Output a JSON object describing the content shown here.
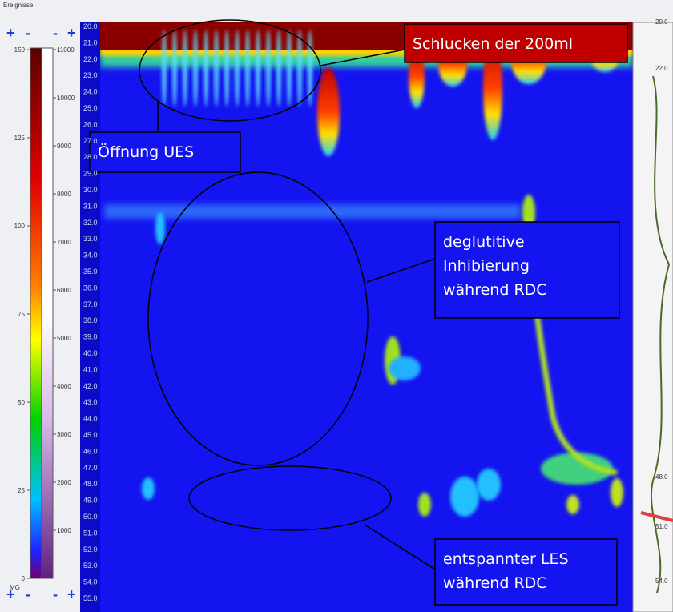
{
  "window": {
    "title": "Ereignisse",
    "buttons": [
      "+",
      "-"
    ],
    "unit": "MG"
  },
  "colorbar": {
    "pressure_ticks": [
      150,
      125,
      100,
      75,
      50,
      25,
      0
    ],
    "other_ticks": [
      11000,
      10000,
      9000,
      8000,
      7000,
      6000,
      5000,
      4000,
      3000,
      2000,
      1000
    ]
  },
  "depth_labels": [
    "20.0",
    "21.0",
    "22.0",
    "23.0",
    "24.0",
    "25.0",
    "26.0",
    "27.0",
    "28.0",
    "29.0",
    "30.0",
    "31.0",
    "32.0",
    "33.0",
    "34.0",
    "35.0",
    "36.0",
    "37.0",
    "38.0",
    "39.0",
    "40.0",
    "41.0",
    "42.0",
    "43.0",
    "44.0",
    "45.0",
    "46.0",
    "47.0",
    "48.0",
    "49.0",
    "50.0",
    "51.0",
    "52.0",
    "53.0",
    "54.0",
    "55.0"
  ],
  "side_panel": {
    "labels": [
      "20.0",
      "22.0",
      "48.0",
      "51.0",
      "54.0"
    ]
  },
  "annotations": [
    {
      "lines": [
        "Schlucken der 200ml"
      ]
    },
    {
      "lines": [
        "Öffnung UES"
      ]
    },
    {
      "lines": [
        "deglutitive",
        "Inhibierung",
        "während RDC"
      ]
    },
    {
      "lines": [
        "entspannter LES",
        "während RDC"
      ]
    }
  ]
}
